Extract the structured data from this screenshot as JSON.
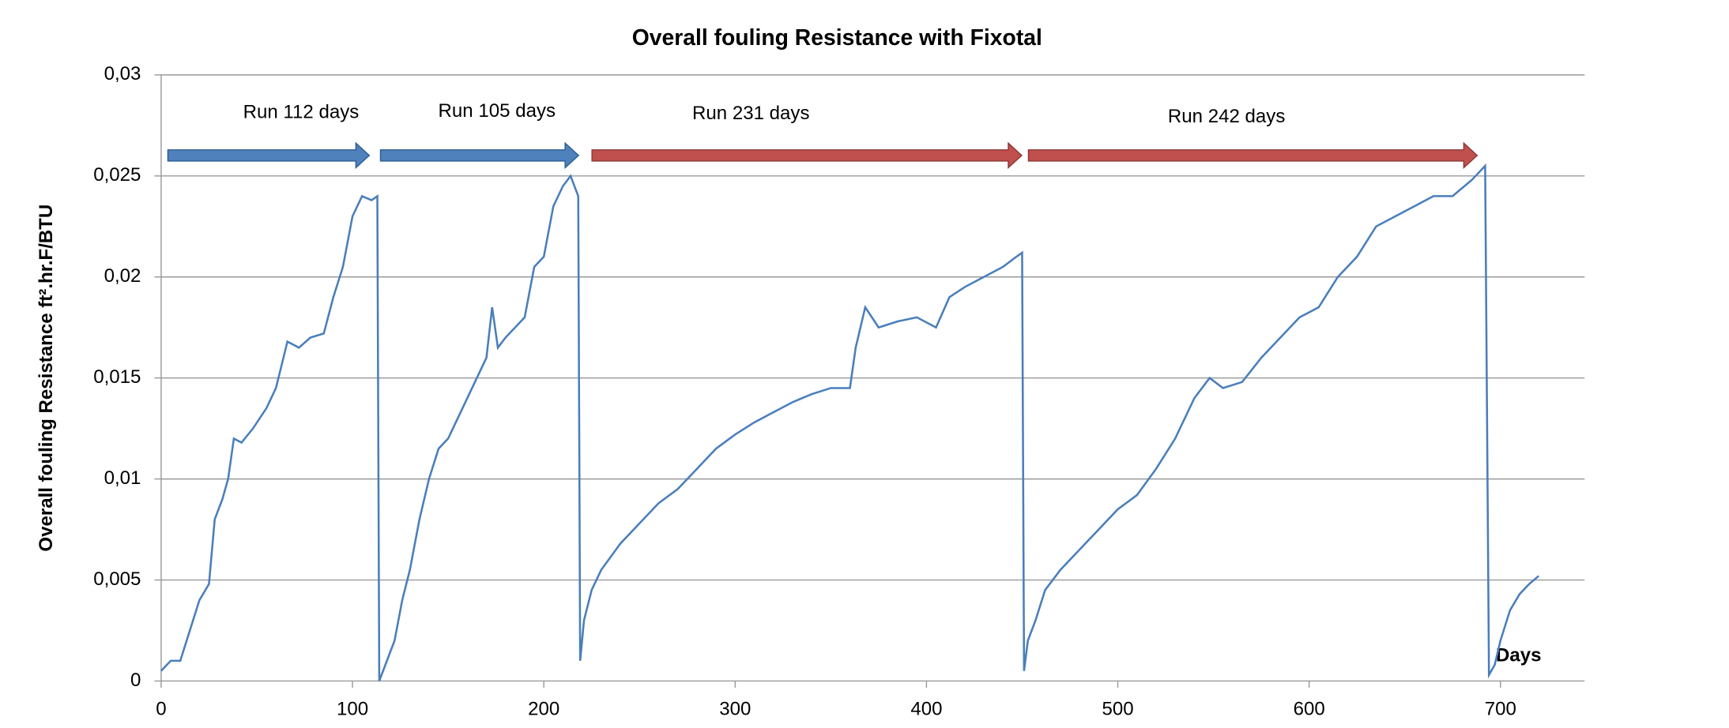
{
  "chart_data": {
    "type": "line",
    "title": "Overall fouling Resistance with Fixotal",
    "y_label": "Overall fouling Resistance ft².hr.F/BTU",
    "x_label": "Days",
    "annotations": [
      "Run 112 days",
      "Run 105 days",
      "Run 231 days",
      "Run 242 days"
    ],
    "color": "#4a7ebb",
    "grid": true,
    "xlim": [
      0,
      744
    ],
    "xticks": [
      0,
      100,
      200,
      300,
      400,
      500,
      600,
      700
    ],
    "ylim": [
      0,
      0.03
    ],
    "yticks": [
      0,
      {
        "value": 0.005,
        "label": "0,005"
      },
      {
        "value": 0.01,
        "label": "0,01"
      },
      {
        "value": 0.015,
        "label": "0,015"
      },
      {
        "value": 0.02,
        "label": "0,02"
      },
      {
        "value": 0.025,
        "label": "0,025"
      },
      {
        "value": 0.03,
        "label": "0,03"
      }
    ],
    "x": [
      0,
      5,
      10,
      15,
      20,
      25,
      28,
      32,
      35,
      38,
      42,
      48,
      55,
      60,
      66,
      72,
      78,
      85,
      90,
      95,
      100,
      105,
      110,
      113,
      114,
      118,
      122,
      126,
      130,
      135,
      140,
      145,
      150,
      155,
      160,
      165,
      170,
      173,
      176,
      180,
      185,
      190,
      195,
      200,
      205,
      210,
      214,
      218,
      219,
      221,
      225,
      230,
      240,
      250,
      260,
      270,
      280,
      290,
      300,
      310,
      320,
      330,
      340,
      350,
      360,
      363,
      368,
      375,
      385,
      395,
      405,
      412,
      420,
      430,
      440,
      447,
      450,
      451,
      453,
      457,
      462,
      470,
      480,
      490,
      500,
      510,
      520,
      530,
      540,
      548,
      555,
      565,
      575,
      585,
      595,
      605,
      615,
      625,
      635,
      645,
      655,
      665,
      675,
      685,
      692,
      694,
      697,
      700,
      705,
      710,
      715,
      720
    ],
    "values": [
      0.0005,
      0.001,
      0.001,
      0.0025,
      0.004,
      0.0048,
      0.008,
      0.009,
      0.01,
      0.012,
      0.0118,
      0.0125,
      0.0135,
      0.0145,
      0.0168,
      0.0165,
      0.017,
      0.0172,
      0.019,
      0.0205,
      0.023,
      0.024,
      0.0238,
      0.024,
      0,
      0.001,
      0.002,
      0.004,
      0.0055,
      0.008,
      0.01,
      0.0115,
      0.012,
      0.013,
      0.014,
      0.015,
      0.016,
      0.0185,
      0.0165,
      0.017,
      0.0175,
      0.018,
      0.0205,
      0.021,
      0.0235,
      0.0245,
      0.025,
      0.024,
      0.001,
      0.003,
      0.0045,
      0.0055,
      0.0068,
      0.0078,
      0.0088,
      0.0095,
      0.0105,
      0.0115,
      0.0122,
      0.0128,
      0.0133,
      0.0138,
      0.0142,
      0.0145,
      0.0145,
      0.0165,
      0.0185,
      0.0175,
      0.0178,
      0.018,
      0.0175,
      0.019,
      0.0195,
      0.02,
      0.0205,
      0.021,
      0.0212,
      0.0005,
      0.002,
      0.003,
      0.0045,
      0.0055,
      0.0065,
      0.0075,
      0.0085,
      0.0092,
      0.0105,
      0.012,
      0.014,
      0.015,
      0.0145,
      0.0148,
      0.016,
      0.017,
      0.018,
      0.0185,
      0.02,
      0.021,
      0.0225,
      0.023,
      0.0235,
      0.024,
      0.024,
      0.0248,
      0.0255,
      0.0003,
      0.0008,
      0.002,
      0.0035,
      0.0043,
      0.0048,
      0.0052
    ]
  }
}
